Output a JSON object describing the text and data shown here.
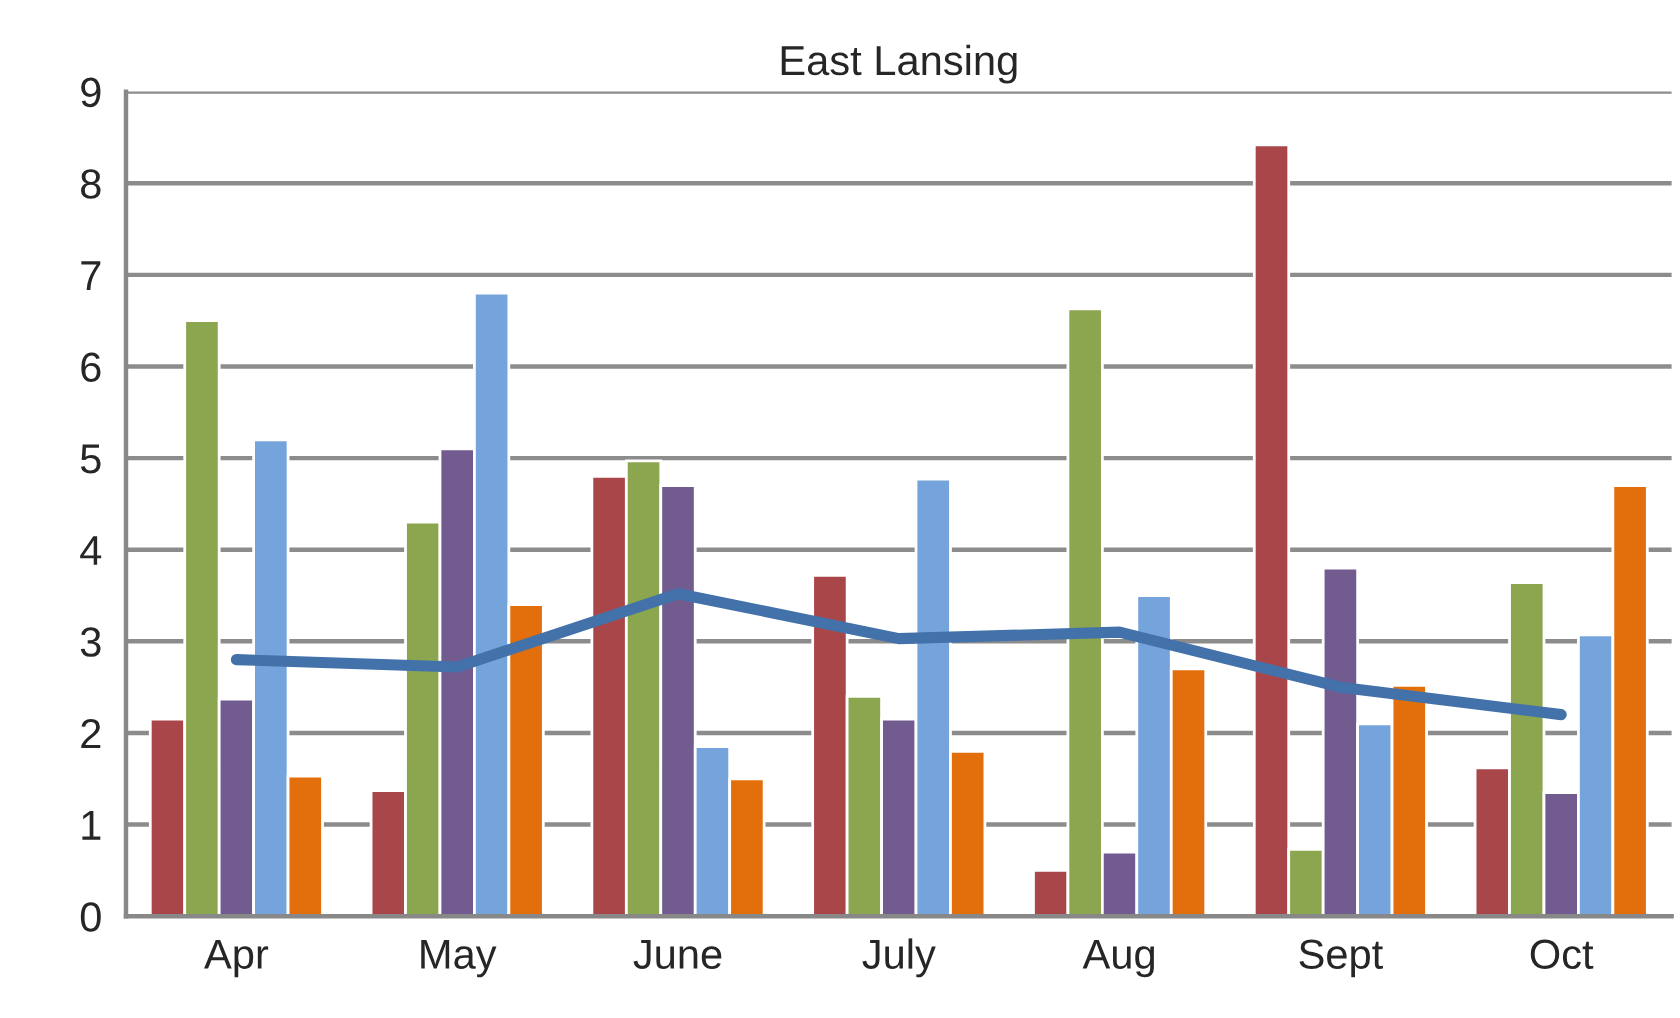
{
  "chart_data": {
    "type": "bar",
    "title": "East Lansing",
    "categories": [
      "Apr",
      "May",
      "June",
      "July",
      "Aug",
      "Sept",
      "Oct"
    ],
    "series": [
      {
        "color": "#a9464a",
        "values": [
          2.15,
          1.37,
          4.8,
          3.72,
          0.5,
          8.42,
          1.62
        ]
      },
      {
        "color": "#8ba64f",
        "values": [
          6.5,
          4.3,
          4.97,
          2.4,
          6.63,
          0.73,
          3.64
        ]
      },
      {
        "color": "#715b8f",
        "values": [
          2.37,
          5.1,
          4.7,
          2.15,
          0.7,
          3.8,
          1.35
        ]
      },
      {
        "color": "#74a4db",
        "values": [
          5.2,
          6.8,
          1.85,
          4.77,
          3.5,
          2.1,
          3.07
        ]
      },
      {
        "color": "#e36f0c",
        "values": [
          1.53,
          3.4,
          1.5,
          1.8,
          2.7,
          2.52,
          4.7
        ]
      },
      {
        "type": "line",
        "color": "#4372aa",
        "values": [
          2.8,
          2.72,
          3.52,
          3.03,
          3.1,
          2.5,
          2.2
        ]
      }
    ],
    "ylim": [
      0,
      9
    ],
    "yticks": [
      0,
      1,
      2,
      3,
      4,
      5,
      6,
      7,
      8,
      9
    ],
    "grid": "y"
  }
}
